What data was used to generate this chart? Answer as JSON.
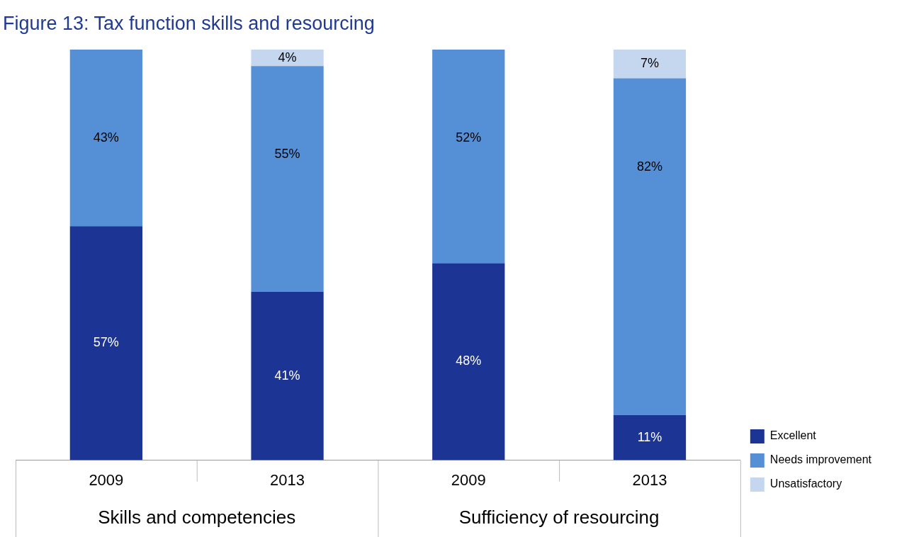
{
  "chart_data": {
    "type": "bar",
    "title": "Figure 13: Tax function skills and resourcing",
    "categories": [
      "2009",
      "2013",
      "2009",
      "2013"
    ],
    "series": [
      {
        "name": "Excellent",
        "color": "#1c3494",
        "values": [
          57,
          41,
          48,
          11
        ],
        "value_labels": [
          "57%",
          "41%",
          "48%",
          "11%"
        ]
      },
      {
        "name": "Needs improvement",
        "color": "#5590d6",
        "values": [
          43,
          55,
          52,
          82
        ],
        "value_labels": [
          "43%",
          "55%",
          "52%",
          "82%"
        ]
      },
      {
        "name": "Unsatisfactory",
        "color": "#c5d6ef",
        "values": [
          null,
          4,
          null,
          7
        ],
        "value_labels": [
          null,
          "4%",
          null,
          "7%"
        ]
      }
    ],
    "stacked": true,
    "tick_labels": "x",
    "grid": false,
    "legend": "bottom right",
    "annotations": [
      "Skills and competencies",
      "Sufficiency of resourcing"
    ]
  }
}
